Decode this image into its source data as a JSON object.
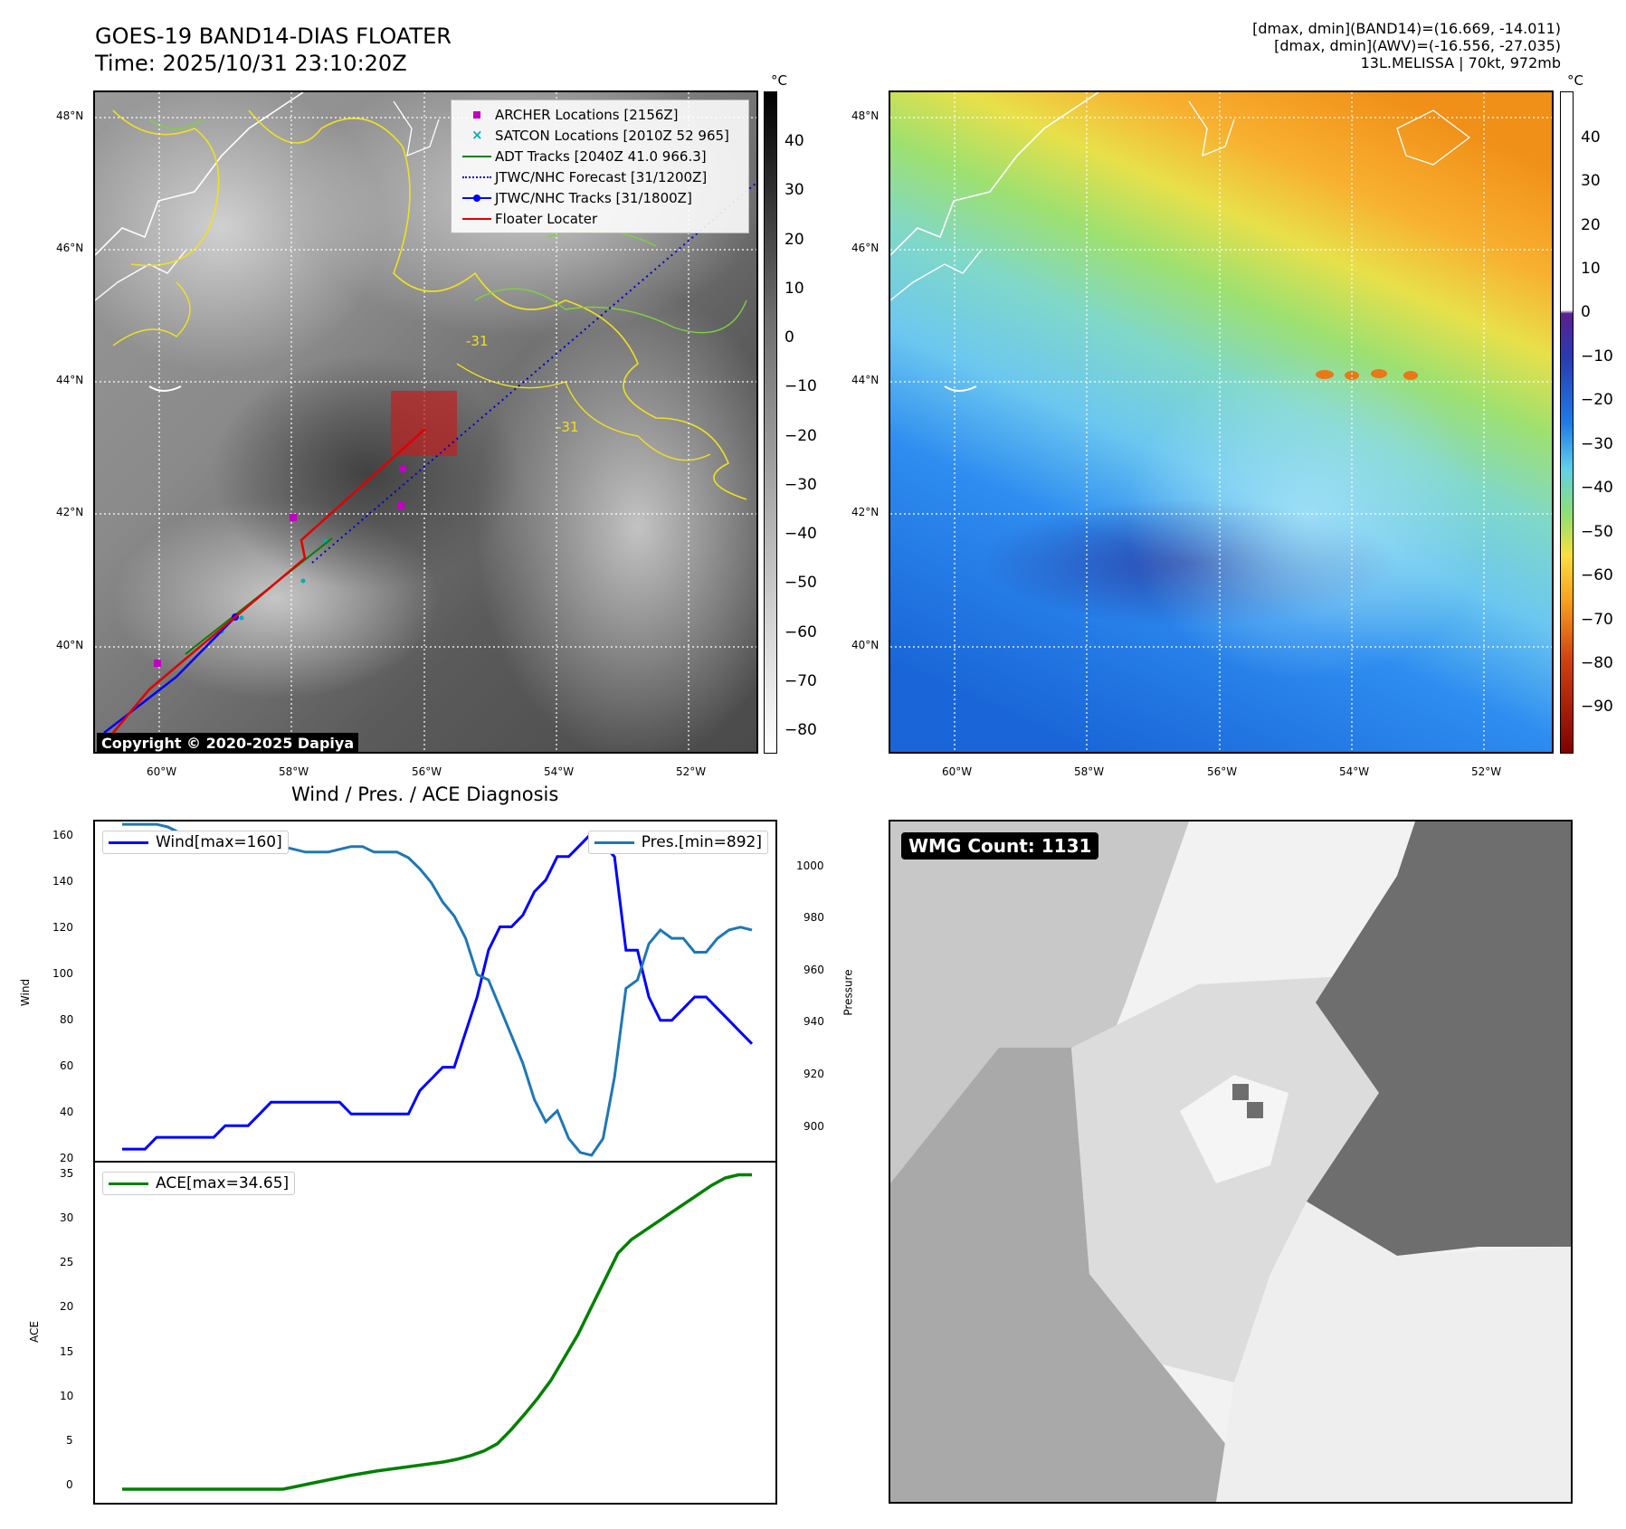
{
  "header": {
    "title_line1": "GOES-19 BAND14-DIAS FLOATER",
    "title_line2": "Time: 2025/10/31 23:10:20Z",
    "info_line1": "[dmax, dmin](BAND14)=(16.669, -14.011)",
    "info_line2": "[dmax, dmin](AWV)=(-16.556, -27.035)",
    "info_line3": "13L.MELISSA | 70kt, 972mb"
  },
  "maps": {
    "lat_labels": [
      "48°N",
      "46°N",
      "44°N",
      "42°N",
      "40°N"
    ],
    "lon_labels": [
      "60°W",
      "58°W",
      "56°W",
      "54°W",
      "52°W"
    ],
    "contour_label_1": "-31",
    "contour_label_2": "-31",
    "copyright": "Copyright © 2020-2025 Dapiya",
    "colorbar_unit": "°C",
    "colorbar_gray_ticks": [
      "40",
      "30",
      "20",
      "10",
      "0",
      "−10",
      "−20",
      "−30",
      "−40",
      "−50",
      "−60",
      "−70",
      "−80"
    ],
    "colorbar_color_ticks": [
      "40",
      "30",
      "20",
      "10",
      "0",
      "−10",
      "−20",
      "−30",
      "−40",
      "−50",
      "−60",
      "−70",
      "−80",
      "−90"
    ],
    "legend": {
      "archer": "ARCHER Locations [2156Z]",
      "satcon": "SATCON Locations [2010Z 52 965]",
      "adt": "ADT Tracks [2040Z 41.0 966.3]",
      "forecast": "JTWC/NHC Forecast [31/1200Z]",
      "tracks": "JTWC/NHC Tracks [31/1800Z]",
      "floater": "Floater Locater"
    },
    "colors": {
      "archer": "#c000c0",
      "satcon": "#00b0b0",
      "adt": "#008000",
      "forecast": "#0000cc",
      "tracks": "#0000ff",
      "floater": "#e00000",
      "contour_yellow": "#f0e020",
      "contour_green": "#80d040"
    }
  },
  "diagnosis": {
    "title": "Wind / Pres. / ACE Diagnosis",
    "wind_label": "Wind",
    "pressure_label": "Pressure",
    "ace_label": "ACE",
    "wind_legend": "Wind[max=160]",
    "pres_legend": "Pres.[min=892]",
    "ace_legend": "ACE[max=34.65]",
    "wind_ticks": [
      "160",
      "140",
      "120",
      "100",
      "80",
      "60",
      "40",
      "20"
    ],
    "pres_ticks": [
      "1000",
      "980",
      "960",
      "940",
      "920",
      "900"
    ],
    "ace_ticks": [
      "35",
      "30",
      "25",
      "20",
      "15",
      "10",
      "5",
      "0"
    ]
  },
  "wmg": {
    "count_label": "WMG Count: 1131"
  },
  "chart_data": [
    {
      "type": "line",
      "title": "Wind / Pres. / ACE Diagnosis",
      "ylabel": "Wind",
      "ylim": [
        20,
        165
      ],
      "series": [
        {
          "name": "Wind[max=160]",
          "color": "#0000ff",
          "values": [
            25,
            25,
            25,
            30,
            30,
            30,
            30,
            30,
            30,
            35,
            35,
            35,
            40,
            45,
            45,
            45,
            45,
            45,
            45,
            45,
            40,
            40,
            40,
            40,
            40,
            40,
            50,
            55,
            60,
            60,
            75,
            90,
            110,
            120,
            120,
            125,
            135,
            140,
            150,
            150,
            155,
            160,
            155,
            150,
            110,
            110,
            90,
            80,
            80,
            85,
            90,
            90,
            85,
            80,
            75,
            70
          ]
        }
      ]
    },
    {
      "type": "line",
      "ylabel": "Pressure",
      "ylim": [
        890,
        1012
      ],
      "series": [
        {
          "name": "Pres.[min=892]",
          "color": "#1f77b4",
          "values": [
            1011,
            1011,
            1011,
            1011,
            1010,
            1008,
            1008,
            1007,
            1006,
            1006,
            1005,
            1004,
            1004,
            1003,
            1003,
            1002,
            1001,
            1001,
            1001,
            1002,
            1003,
            1003,
            1001,
            1001,
            1001,
            999,
            995,
            990,
            983,
            978,
            970,
            957,
            955,
            945,
            935,
            925,
            912,
            904,
            908,
            898,
            893,
            892,
            898,
            920,
            952,
            955,
            968,
            973,
            970,
            970,
            965,
            965,
            970,
            973,
            974,
            973
          ]
        }
      ]
    },
    {
      "type": "line",
      "ylabel": "ACE",
      "ylim": [
        -1.5,
        36
      ],
      "series": [
        {
          "name": "ACE[max=34.65]",
          "color": "#008000",
          "values": [
            0,
            0,
            0,
            0,
            0,
            0,
            0,
            0,
            0,
            0,
            0,
            0,
            0,
            0.3,
            0.6,
            0.9,
            1.2,
            1.5,
            1.75,
            2,
            2.2,
            2.4,
            2.6,
            2.8,
            3,
            3.3,
            3.7,
            4.2,
            5,
            6.5,
            8.2,
            10,
            12,
            14.5,
            17,
            20,
            23,
            26,
            27.5,
            28.5,
            29.5,
            30.5,
            31.5,
            32.5,
            33.5,
            34.3,
            34.65,
            34.65
          ]
        }
      ]
    }
  ]
}
